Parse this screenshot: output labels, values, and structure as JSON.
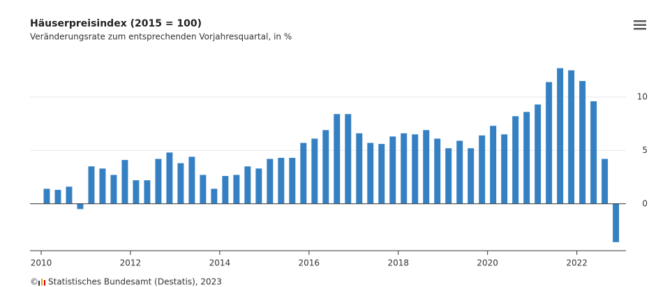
{
  "chart_data": {
    "type": "bar",
    "title": "Häuserpreisindex (2015 = 100)",
    "subtitle": "Veränderungsrate zum entsprechenden Vorjahresquartal, in %",
    "source": "Statistisches Bundesamt (Destatis), 2023",
    "color": "#3580c2",
    "x": [
      2010.125,
      2010.375,
      2010.625,
      2010.875,
      2011.125,
      2011.375,
      2011.625,
      2011.875,
      2012.125,
      2012.375,
      2012.625,
      2012.875,
      2013.125,
      2013.375,
      2013.625,
      2013.875,
      2014.125,
      2014.375,
      2014.625,
      2014.875,
      2015.125,
      2015.375,
      2015.625,
      2015.875,
      2016.125,
      2016.375,
      2016.625,
      2016.875,
      2017.125,
      2017.375,
      2017.625,
      2017.875,
      2018.125,
      2018.375,
      2018.625,
      2018.875,
      2019.125,
      2019.375,
      2019.625,
      2019.875,
      2020.125,
      2020.375,
      2020.625,
      2020.875,
      2021.125,
      2021.375,
      2021.625,
      2021.875,
      2022.125,
      2022.375,
      2022.625,
      2022.875
    ],
    "values": [
      1.4,
      1.3,
      1.6,
      -0.5,
      3.5,
      3.3,
      2.7,
      4.1,
      2.2,
      2.2,
      4.2,
      4.8,
      3.8,
      4.4,
      2.7,
      1.4,
      2.6,
      2.7,
      3.5,
      3.3,
      4.2,
      4.3,
      4.3,
      5.7,
      6.1,
      6.9,
      8.4,
      8.4,
      6.6,
      5.7,
      5.6,
      6.3,
      6.6,
      6.5,
      6.9,
      6.1,
      5.2,
      5.9,
      5.2,
      6.4,
      7.3,
      6.5,
      8.2,
      8.6,
      9.3,
      11.4,
      12.7,
      12.5,
      11.5,
      9.6,
      4.2,
      -3.6
    ],
    "xlim": [
      2009.75,
      2023.1
    ],
    "xticks": [
      2010,
      2012,
      2014,
      2016,
      2018,
      2020,
      2022
    ],
    "ylim": [
      -4.4,
      13.2
    ],
    "yticks": [
      0,
      5,
      10
    ],
    "grid": true
  }
}
